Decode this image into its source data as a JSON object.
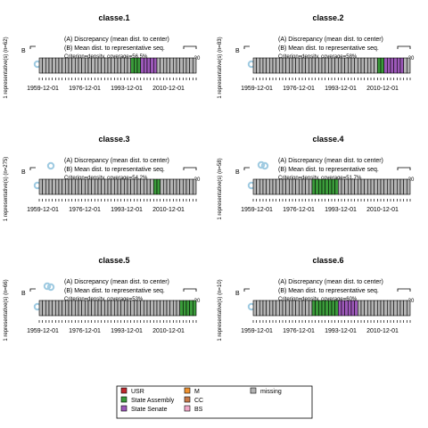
{
  "colors": {
    "USR": "#c0282d",
    "State Assembly": "#3a9b3a",
    "State Senate": "#9c58b8",
    "M": "#f0922f",
    "CC": "#c87a4a",
    "BS": "#f0a8c8",
    "missing": "#b3b3b3"
  },
  "legend": {
    "items": [
      {
        "label": "USR",
        "color": "#c0282d"
      },
      {
        "label": "State Assembly",
        "color": "#3a9b3a"
      },
      {
        "label": "State Senate",
        "color": "#9c58b8"
      },
      {
        "label": "M",
        "color": "#f0922f"
      },
      {
        "label": "CC",
        "color": "#c87a4a"
      },
      {
        "label": "BS",
        "color": "#f0a8c8"
      },
      {
        "label": "missing",
        "color": "#b3b3b3"
      }
    ]
  },
  "chart_data": [
    {
      "type": "sequence-representative",
      "title": "classe.1",
      "ylabel": "1 representative(s) (n=62)",
      "annotation_a": "(A) Discrepancy (mean dist. to center)",
      "annotation_b": "(B) Mean dist. to representative seq.",
      "coverage": "Criterion=density, coverage=56.5%",
      "b_marker": "B",
      "scale_end": "20",
      "xticks": [
        "1959-12-01",
        "1976-12-01",
        "1993-12-01",
        "2010-12-01"
      ],
      "n_steps": 48,
      "segments": [
        {
          "state": "missing",
          "start": 0,
          "end": 28
        },
        {
          "state": "State Assembly",
          "start": 28,
          "end": 31
        },
        {
          "state": "State Senate",
          "start": 31,
          "end": 36
        },
        {
          "state": "missing",
          "start": 36,
          "end": 48
        }
      ],
      "a_value": 0,
      "b_value": 0,
      "b_max": 20
    },
    {
      "type": "sequence-representative",
      "title": "classe.2",
      "ylabel": "1 representative(s) (n=83)",
      "annotation_a": "(A) Discrepancy (mean dist. to center)",
      "annotation_b": "(B) Mean dist. to representative seq.",
      "coverage": "Criterion=density, coverage=58%",
      "b_marker": "B",
      "scale_end": "20",
      "xticks": [
        "1959-12-01",
        "1976-12-01",
        "1993-12-01",
        "2010-12-01"
      ],
      "n_steps": 48,
      "segments": [
        {
          "state": "missing",
          "start": 0,
          "end": 38
        },
        {
          "state": "State Assembly",
          "start": 38,
          "end": 40
        },
        {
          "state": "State Senate",
          "start": 40,
          "end": 46
        },
        {
          "state": "missing",
          "start": 46,
          "end": 48
        }
      ],
      "a_value": 0,
      "b_value": 0,
      "b_max": 20
    },
    {
      "type": "sequence-representative",
      "title": "classe.3",
      "ylabel": "1 representative(s) (n=275)",
      "annotation_a": "(A) Discrepancy (mean dist. to center)",
      "annotation_b": "(B) Mean dist. to representative seq.",
      "coverage": "Criterion=density, coverage=54.2%",
      "b_marker": "B",
      "scale_end": "20",
      "xticks": [
        "1959-12-01",
        "1976-12-01",
        "1993-12-01",
        "2010-12-01"
      ],
      "n_steps": 48,
      "segments": [
        {
          "state": "missing",
          "start": 0,
          "end": 35
        },
        {
          "state": "State Assembly",
          "start": 35,
          "end": 37
        },
        {
          "state": "missing",
          "start": 37,
          "end": 48
        }
      ],
      "a_value": 1,
      "b_value": 0,
      "b_max": 20
    },
    {
      "type": "sequence-representative",
      "title": "classe.4",
      "ylabel": "1 representative(s) (n=58)",
      "annotation_a": "(A) Discrepancy (mean dist. to center)",
      "annotation_b": "(B) Mean dist. to representative seq.",
      "coverage": "Criterion=density, coverage=51.7%",
      "b_marker": "B",
      "scale_end": "20",
      "xticks": [
        "1959-12-01",
        "1976-12-01",
        "1993-12-01",
        "2010-12-01"
      ],
      "n_steps": 48,
      "segments": [
        {
          "state": "missing",
          "start": 0,
          "end": 18
        },
        {
          "state": "State Assembly",
          "start": 18,
          "end": 26
        },
        {
          "state": "missing",
          "start": 26,
          "end": 48
        }
      ],
      "a_value": 2,
      "b_value": 0,
      "b_max": 20
    },
    {
      "type": "sequence-representative",
      "title": "classe.5",
      "ylabel": "1 representative(s) (n=66)",
      "annotation_a": "(A) Discrepancy (mean dist. to center)",
      "annotation_b": "(B) Mean dist. to representative seq.",
      "coverage": "Criterion=density, coverage=53%",
      "b_marker": "B",
      "scale_end": "20",
      "xticks": [
        "1959-12-01",
        "1976-12-01",
        "1993-12-01",
        "2010-12-01"
      ],
      "n_steps": 48,
      "segments": [
        {
          "state": "missing",
          "start": 0,
          "end": 43
        },
        {
          "state": "State Assembly",
          "start": 43,
          "end": 48
        }
      ],
      "a_value": 2,
      "b_value": 0,
      "b_max": 20
    },
    {
      "type": "sequence-representative",
      "title": "classe.6",
      "ylabel": "1 representative(s) (n=10)",
      "annotation_a": "(A) Discrepancy (mean dist. to center)",
      "annotation_b": "(B) Mean dist. to representative seq.",
      "coverage": "Criterion=density, coverage=60%",
      "b_marker": "B",
      "scale_end": "20",
      "xticks": [
        "1959-12-01",
        "1976-12-01",
        "1993-12-01",
        "2010-12-01"
      ],
      "n_steps": 48,
      "segments": [
        {
          "state": "missing",
          "start": 0,
          "end": 18
        },
        {
          "state": "State Assembly",
          "start": 18,
          "end": 26
        },
        {
          "state": "State Senate",
          "start": 26,
          "end": 32
        },
        {
          "state": "missing",
          "start": 32,
          "end": 48
        }
      ],
      "a_value": 0,
      "b_value": 0,
      "b_max": 20
    }
  ]
}
